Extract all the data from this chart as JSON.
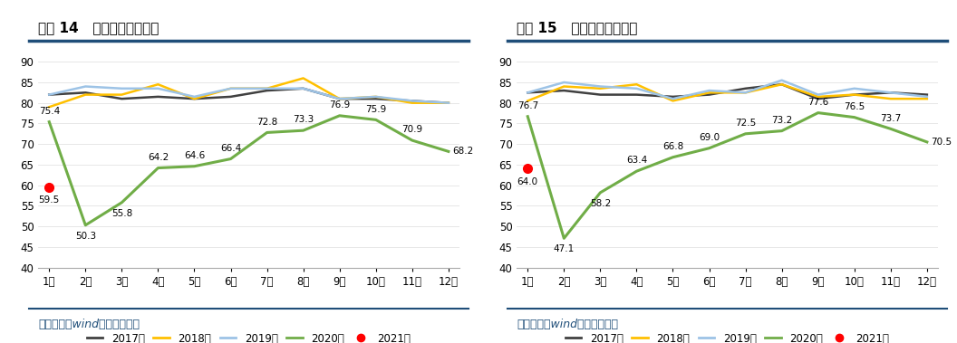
{
  "chart1": {
    "title": "图表 14   东方航空客座率。",
    "months": [
      "1月",
      "2月",
      "3月",
      "4月",
      "5月",
      "6月",
      "7月",
      "8月",
      "9月",
      "10月",
      "11月",
      "12月"
    ],
    "series": {
      "2017年": [
        82.0,
        82.5,
        81.0,
        81.5,
        81.0,
        81.5,
        83.0,
        83.5,
        81.0,
        81.0,
        80.5,
        80.0
      ],
      "2018年": [
        79.0,
        82.0,
        82.0,
        84.5,
        81.0,
        83.5,
        83.5,
        86.0,
        81.0,
        81.5,
        80.0,
        80.0
      ],
      "2019年": [
        82.0,
        84.0,
        83.5,
        83.5,
        81.5,
        83.5,
        83.5,
        83.5,
        81.0,
        81.5,
        80.5,
        80.0
      ],
      "2020年": [
        75.4,
        50.3,
        55.8,
        64.2,
        64.6,
        66.4,
        72.8,
        73.3,
        76.9,
        75.9,
        70.9,
        68.2
      ],
      "2021年": [
        59.5,
        null,
        null,
        null,
        null,
        null,
        null,
        null,
        null,
        null,
        null,
        null
      ]
    },
    "colors": {
      "2017年": "#404040",
      "2018年": "#FFC000",
      "2019年": "#9DC3E6",
      "2020年": "#70AD47",
      "2021年": "#FF0000"
    },
    "ylim": [
      40,
      90
    ],
    "yticks": [
      40,
      45,
      50,
      55,
      60,
      65,
      70,
      75,
      80,
      85,
      90
    ],
    "source": "资料来源：wind，华创证券。"
  },
  "chart2": {
    "title": "图表 15   南方航空客座率。",
    "months": [
      "1月",
      "2月",
      "3月",
      "4月",
      "5月",
      "6月",
      "7月",
      "8月",
      "9月",
      "10月",
      "11月",
      "12月"
    ],
    "series": {
      "2017年": [
        82.5,
        83.0,
        82.0,
        82.0,
        81.5,
        82.0,
        83.5,
        84.5,
        81.0,
        82.0,
        82.5,
        82.0
      ],
      "2018年": [
        80.5,
        84.0,
        83.5,
        84.5,
        80.5,
        82.5,
        82.5,
        84.5,
        81.5,
        82.0,
        81.0,
        81.0
      ],
      "2019年": [
        82.5,
        85.0,
        84.0,
        83.5,
        81.0,
        83.0,
        82.5,
        85.5,
        82.0,
        83.5,
        82.5,
        81.5
      ],
      "2020年": [
        76.7,
        47.1,
        58.2,
        63.4,
        66.8,
        69.0,
        72.5,
        73.2,
        77.6,
        76.5,
        73.7,
        70.5
      ],
      "2021年": [
        64.0,
        null,
        null,
        null,
        null,
        null,
        null,
        null,
        null,
        null,
        null,
        null
      ]
    },
    "colors": {
      "2017年": "#404040",
      "2018年": "#FFC000",
      "2019年": "#9DC3E6",
      "2020年": "#70AD47",
      "2021年": "#FF0000"
    },
    "ylim": [
      40,
      90
    ],
    "yticks": [
      40,
      45,
      50,
      55,
      60,
      65,
      70,
      75,
      80,
      85,
      90
    ],
    "source": "资料来源：wind，华创证券。"
  },
  "legend_labels": [
    "2017年",
    "2018年",
    "2019年",
    "2020年",
    "2021年"
  ],
  "title_fontsize": 11,
  "label_fontsize": 8.5,
  "annotation_fontsize": 7.5,
  "source_fontsize": 9,
  "bg_color": "#FFFFFF",
  "header_line_color": "#1F4E79",
  "bottom_line_color": "#1F4E79"
}
